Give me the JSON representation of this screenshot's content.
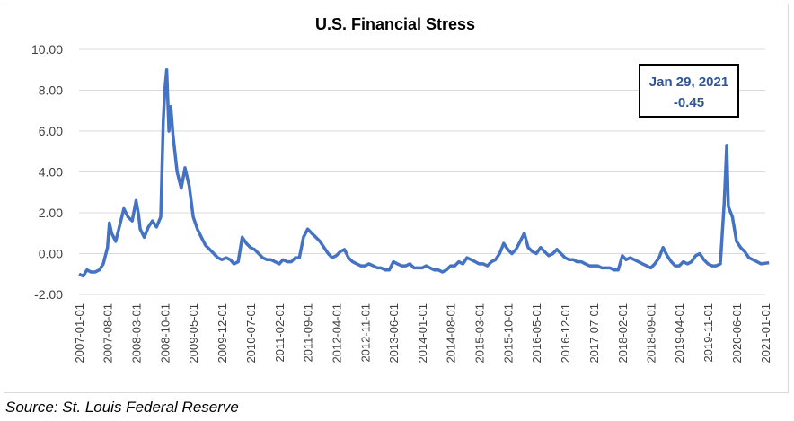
{
  "chart_data": {
    "type": "line",
    "title": "U.S. Financial Stress",
    "xlabel": "",
    "ylabel": "",
    "ylim": [
      -2,
      10
    ],
    "yticks": [
      "10.00",
      "8.00",
      "6.00",
      "4.00",
      "2.00",
      "0.00",
      "-2.00"
    ],
    "grid": "horizontal",
    "xticks": [
      "2007-01-01",
      "2007-08-01",
      "2008-03-01",
      "2008-10-01",
      "2009-05-01",
      "2009-12-01",
      "2010-07-01",
      "2011-02-01",
      "2011-09-01",
      "2012-04-01",
      "2012-11-01",
      "2013-06-01",
      "2014-01-01",
      "2014-08-01",
      "2015-03-01",
      "2015-10-01",
      "2016-05-01",
      "2016-12-01",
      "2017-07-01",
      "2018-02-01",
      "2018-09-01",
      "2019-04-01",
      "2019-11-01",
      "2020-06-01",
      "2021-01-01"
    ],
    "series": [
      {
        "name": "",
        "color": "#4472c4",
        "points": [
          [
            "2007-01-01",
            -1.0
          ],
          [
            "2007-02-01",
            -1.1
          ],
          [
            "2007-03-01",
            -0.8
          ],
          [
            "2007-04-01",
            -0.9
          ],
          [
            "2007-05-01",
            -0.9
          ],
          [
            "2007-06-01",
            -0.8
          ],
          [
            "2007-07-01",
            -0.5
          ],
          [
            "2007-08-01",
            0.3
          ],
          [
            "2007-08-15",
            1.5
          ],
          [
            "2007-09-01",
            1.0
          ],
          [
            "2007-10-01",
            0.6
          ],
          [
            "2007-11-01",
            1.4
          ],
          [
            "2007-12-01",
            2.2
          ],
          [
            "2008-01-01",
            1.8
          ],
          [
            "2008-02-01",
            1.6
          ],
          [
            "2008-03-01",
            2.6
          ],
          [
            "2008-03-20",
            1.9
          ],
          [
            "2008-04-01",
            1.2
          ],
          [
            "2008-05-01",
            0.8
          ],
          [
            "2008-06-01",
            1.3
          ],
          [
            "2008-07-01",
            1.6
          ],
          [
            "2008-08-01",
            1.3
          ],
          [
            "2008-09-01",
            1.8
          ],
          [
            "2008-09-20",
            6.5
          ],
          [
            "2008-10-01",
            8.0
          ],
          [
            "2008-10-15",
            9.0
          ],
          [
            "2008-11-01",
            6.0
          ],
          [
            "2008-11-15",
            7.2
          ],
          [
            "2008-12-01",
            5.8
          ],
          [
            "2009-01-01",
            4.0
          ],
          [
            "2009-02-01",
            3.2
          ],
          [
            "2009-03-01",
            4.2
          ],
          [
            "2009-04-01",
            3.3
          ],
          [
            "2009-05-01",
            1.8
          ],
          [
            "2009-06-01",
            1.2
          ],
          [
            "2009-07-01",
            0.8
          ],
          [
            "2009-08-01",
            0.4
          ],
          [
            "2009-09-01",
            0.2
          ],
          [
            "2009-10-01",
            0.0
          ],
          [
            "2009-11-01",
            -0.2
          ],
          [
            "2009-12-01",
            -0.3
          ],
          [
            "2010-01-01",
            -0.2
          ],
          [
            "2010-02-01",
            -0.3
          ],
          [
            "2010-03-01",
            -0.5
          ],
          [
            "2010-04-01",
            -0.4
          ],
          [
            "2010-05-01",
            0.8
          ],
          [
            "2010-06-01",
            0.5
          ],
          [
            "2010-07-01",
            0.3
          ],
          [
            "2010-08-01",
            0.2
          ],
          [
            "2010-09-01",
            0.0
          ],
          [
            "2010-10-01",
            -0.2
          ],
          [
            "2010-11-01",
            -0.3
          ],
          [
            "2010-12-01",
            -0.3
          ],
          [
            "2011-01-01",
            -0.4
          ],
          [
            "2011-02-01",
            -0.5
          ],
          [
            "2011-03-01",
            -0.3
          ],
          [
            "2011-04-01",
            -0.4
          ],
          [
            "2011-05-01",
            -0.4
          ],
          [
            "2011-06-01",
            -0.2
          ],
          [
            "2011-07-01",
            -0.2
          ],
          [
            "2011-08-01",
            0.8
          ],
          [
            "2011-09-01",
            1.2
          ],
          [
            "2011-10-01",
            1.0
          ],
          [
            "2011-11-01",
            0.8
          ],
          [
            "2011-12-01",
            0.6
          ],
          [
            "2012-01-01",
            0.3
          ],
          [
            "2012-02-01",
            0.0
          ],
          [
            "2012-03-01",
            -0.2
          ],
          [
            "2012-04-01",
            -0.1
          ],
          [
            "2012-05-01",
            0.1
          ],
          [
            "2012-06-01",
            0.2
          ],
          [
            "2012-07-01",
            -0.2
          ],
          [
            "2012-08-01",
            -0.4
          ],
          [
            "2012-09-01",
            -0.5
          ],
          [
            "2012-10-01",
            -0.6
          ],
          [
            "2012-11-01",
            -0.6
          ],
          [
            "2012-12-01",
            -0.5
          ],
          [
            "2013-01-01",
            -0.6
          ],
          [
            "2013-02-01",
            -0.7
          ],
          [
            "2013-03-01",
            -0.7
          ],
          [
            "2013-04-01",
            -0.8
          ],
          [
            "2013-05-01",
            -0.8
          ],
          [
            "2013-06-01",
            -0.4
          ],
          [
            "2013-07-01",
            -0.5
          ],
          [
            "2013-08-01",
            -0.6
          ],
          [
            "2013-09-01",
            -0.6
          ],
          [
            "2013-10-01",
            -0.5
          ],
          [
            "2013-11-01",
            -0.7
          ],
          [
            "2013-12-01",
            -0.7
          ],
          [
            "2014-01-01",
            -0.7
          ],
          [
            "2014-02-01",
            -0.6
          ],
          [
            "2014-03-01",
            -0.7
          ],
          [
            "2014-04-01",
            -0.8
          ],
          [
            "2014-05-01",
            -0.8
          ],
          [
            "2014-06-01",
            -0.9
          ],
          [
            "2014-07-01",
            -0.8
          ],
          [
            "2014-08-01",
            -0.6
          ],
          [
            "2014-09-01",
            -0.6
          ],
          [
            "2014-10-01",
            -0.4
          ],
          [
            "2014-11-01",
            -0.5
          ],
          [
            "2014-12-01",
            -0.2
          ],
          [
            "2015-01-01",
            -0.3
          ],
          [
            "2015-02-01",
            -0.4
          ],
          [
            "2015-03-01",
            -0.5
          ],
          [
            "2015-04-01",
            -0.5
          ],
          [
            "2015-05-01",
            -0.6
          ],
          [
            "2015-06-01",
            -0.4
          ],
          [
            "2015-07-01",
            -0.3
          ],
          [
            "2015-08-01",
            0.0
          ],
          [
            "2015-09-01",
            0.5
          ],
          [
            "2015-10-01",
            0.2
          ],
          [
            "2015-11-01",
            0.0
          ],
          [
            "2015-12-01",
            0.2
          ],
          [
            "2016-01-01",
            0.6
          ],
          [
            "2016-02-01",
            1.0
          ],
          [
            "2016-03-01",
            0.3
          ],
          [
            "2016-04-01",
            0.1
          ],
          [
            "2016-05-01",
            0.0
          ],
          [
            "2016-06-01",
            0.3
          ],
          [
            "2016-07-01",
            0.1
          ],
          [
            "2016-08-01",
            -0.1
          ],
          [
            "2016-09-01",
            0.0
          ],
          [
            "2016-10-01",
            0.2
          ],
          [
            "2016-11-01",
            0.0
          ],
          [
            "2016-12-01",
            -0.2
          ],
          [
            "2017-01-01",
            -0.3
          ],
          [
            "2017-02-01",
            -0.3
          ],
          [
            "2017-03-01",
            -0.4
          ],
          [
            "2017-04-01",
            -0.4
          ],
          [
            "2017-05-01",
            -0.5
          ],
          [
            "2017-06-01",
            -0.6
          ],
          [
            "2017-07-01",
            -0.6
          ],
          [
            "2017-08-01",
            -0.6
          ],
          [
            "2017-09-01",
            -0.7
          ],
          [
            "2017-10-01",
            -0.7
          ],
          [
            "2017-11-01",
            -0.7
          ],
          [
            "2017-12-01",
            -0.8
          ],
          [
            "2018-01-01",
            -0.8
          ],
          [
            "2018-02-01",
            -0.1
          ],
          [
            "2018-03-01",
            -0.3
          ],
          [
            "2018-04-01",
            -0.2
          ],
          [
            "2018-05-01",
            -0.3
          ],
          [
            "2018-06-01",
            -0.4
          ],
          [
            "2018-07-01",
            -0.5
          ],
          [
            "2018-08-01",
            -0.6
          ],
          [
            "2018-09-01",
            -0.7
          ],
          [
            "2018-10-01",
            -0.5
          ],
          [
            "2018-11-01",
            -0.2
          ],
          [
            "2018-12-01",
            0.3
          ],
          [
            "2019-01-01",
            -0.1
          ],
          [
            "2019-02-01",
            -0.4
          ],
          [
            "2019-03-01",
            -0.6
          ],
          [
            "2019-04-01",
            -0.6
          ],
          [
            "2019-05-01",
            -0.4
          ],
          [
            "2019-06-01",
            -0.5
          ],
          [
            "2019-07-01",
            -0.4
          ],
          [
            "2019-08-01",
            -0.1
          ],
          [
            "2019-09-01",
            0.0
          ],
          [
            "2019-10-01",
            -0.3
          ],
          [
            "2019-11-01",
            -0.5
          ],
          [
            "2019-12-01",
            -0.6
          ],
          [
            "2020-01-01",
            -0.6
          ],
          [
            "2020-02-01",
            -0.5
          ],
          [
            "2020-03-01",
            2.5
          ],
          [
            "2020-03-20",
            5.3
          ],
          [
            "2020-04-01",
            2.3
          ],
          [
            "2020-05-01",
            1.8
          ],
          [
            "2020-06-01",
            0.6
          ],
          [
            "2020-07-01",
            0.3
          ],
          [
            "2020-08-01",
            0.1
          ],
          [
            "2020-09-01",
            -0.2
          ],
          [
            "2020-10-01",
            -0.3
          ],
          [
            "2020-11-01",
            -0.4
          ],
          [
            "2020-12-01",
            -0.5
          ],
          [
            "2021-01-29",
            -0.45
          ]
        ]
      }
    ],
    "annotation": {
      "date_label": "Jan 29, 2021",
      "value_label": "-0.45"
    }
  },
  "source_note": "Source:  St. Louis Federal Reserve"
}
